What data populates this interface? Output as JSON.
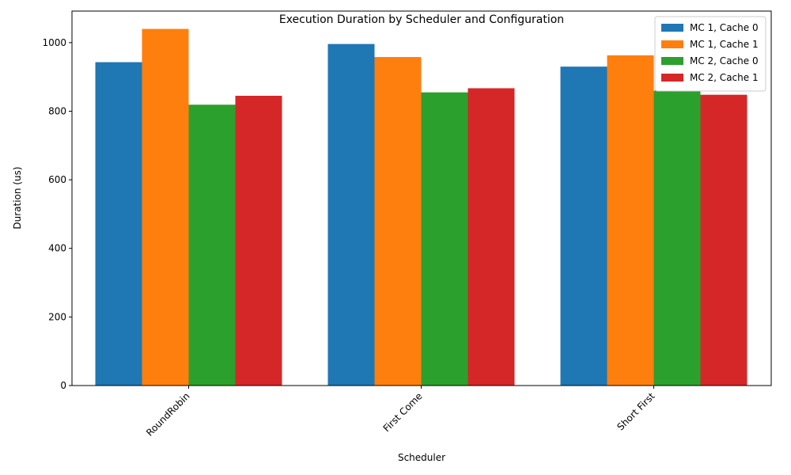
{
  "chart_data": {
    "type": "bar",
    "title": "Execution Duration by Scheduler and Configuration",
    "xlabel": "Scheduler",
    "ylabel": "Duration (us)",
    "categories": [
      "RoundRobin",
      "First Come",
      "Short First"
    ],
    "ylim": [
      0,
      1092
    ],
    "yticks": [
      0,
      200,
      400,
      600,
      800,
      1000
    ],
    "grid": false,
    "legend_position": "top-right",
    "series": [
      {
        "name": "MC 1, Cache 0",
        "color": "#1f77b4",
        "values": [
          943,
          996,
          930
        ]
      },
      {
        "name": "MC 1, Cache 1",
        "color": "#ff7f0e",
        "values": [
          1040,
          958,
          963
        ]
      },
      {
        "name": "MC 2, Cache 0",
        "color": "#2ca02c",
        "values": [
          819,
          855,
          860
        ]
      },
      {
        "name": "MC 2, Cache 1",
        "color": "#d62728",
        "values": [
          845,
          867,
          848
        ]
      }
    ]
  }
}
